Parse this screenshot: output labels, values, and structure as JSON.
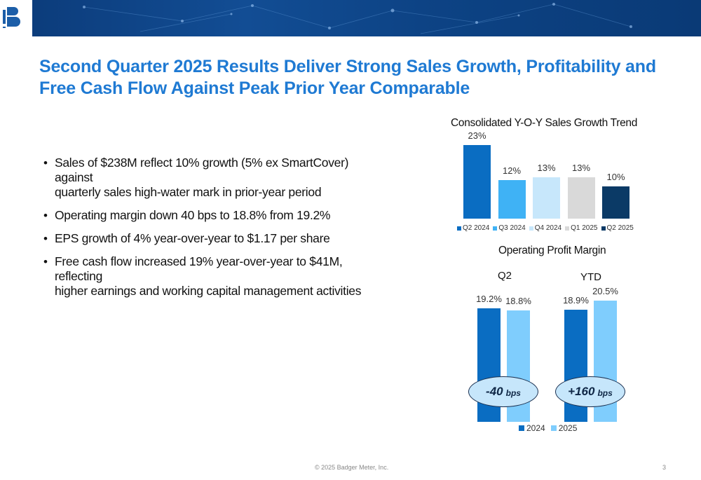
{
  "slide": {
    "title_line1": "Second Quarter 2025 Results Deliver Strong Sales Growth, Profitability and",
    "title_line2": "Free Cash Flow Against Peak Prior Year Comparable",
    "bullets": [
      {
        "line1": "Sales of $238M reflect 10% growth (5% ex SmartCover) against",
        "line2": "quarterly sales high-water mark in prior-year period"
      },
      {
        "line1": "Operating margin down 40 bps to 18.8% from 19.2%",
        "line2": ""
      },
      {
        "line1": "EPS growth of 4% year-over-year to $1.17 per share",
        "line2": ""
      },
      {
        "line1": "Free cash flow increased 19% year-over-year to $41M, reflecting",
        "line2": "higher earnings and working capital management activities"
      }
    ],
    "footer_copyright": "© 2025 Badger Meter, Inc.",
    "page_number": "3"
  },
  "colors": {
    "title": "#1f7ad3",
    "banner": "#0b3a78",
    "q2_2024": "#0a6dc2",
    "q3_2024": "#3fb2f5",
    "q4_2024": "#c7e7fb",
    "q1_2025": "#d9d9d9",
    "q2_2025": "#0b3a66",
    "margin_2024": "#0a6dc2",
    "margin_2025": "#7fcdfd"
  },
  "chart_data": [
    {
      "type": "bar",
      "title": "Consolidated Y-O-Y Sales Growth Trend",
      "categories": [
        "Q2 2024",
        "Q3 2024",
        "Q4 2024",
        "Q1 2025",
        "Q2 2025"
      ],
      "values": [
        23,
        12,
        13,
        13,
        10
      ],
      "value_labels": [
        "23%",
        "12%",
        "13%",
        "13%",
        "10%"
      ],
      "legend": [
        "Q2 2024",
        "Q3 2024",
        "Q4 2024",
        "Q1 2025",
        "Q2 2025"
      ],
      "legend_position": "bottom",
      "ylim": [
        0,
        25
      ],
      "grid": false
    },
    {
      "type": "bar",
      "title": "Operating Profit Margin",
      "categories": [
        "Q2",
        "YTD"
      ],
      "series": [
        {
          "name": "2024",
          "values": [
            19.2,
            18.9
          ],
          "value_labels": [
            "19.2%",
            "18.9%"
          ]
        },
        {
          "name": "2025",
          "values": [
            18.8,
            20.5
          ],
          "value_labels": [
            "18.8%",
            "20.5%"
          ]
        }
      ],
      "annotations": [
        {
          "category": "Q2",
          "value": "-40",
          "unit": "bps"
        },
        {
          "category": "YTD",
          "value": "+160",
          "unit": "bps"
        }
      ],
      "legend_position": "bottom",
      "ylim": [
        0,
        22
      ],
      "grid": false
    }
  ]
}
